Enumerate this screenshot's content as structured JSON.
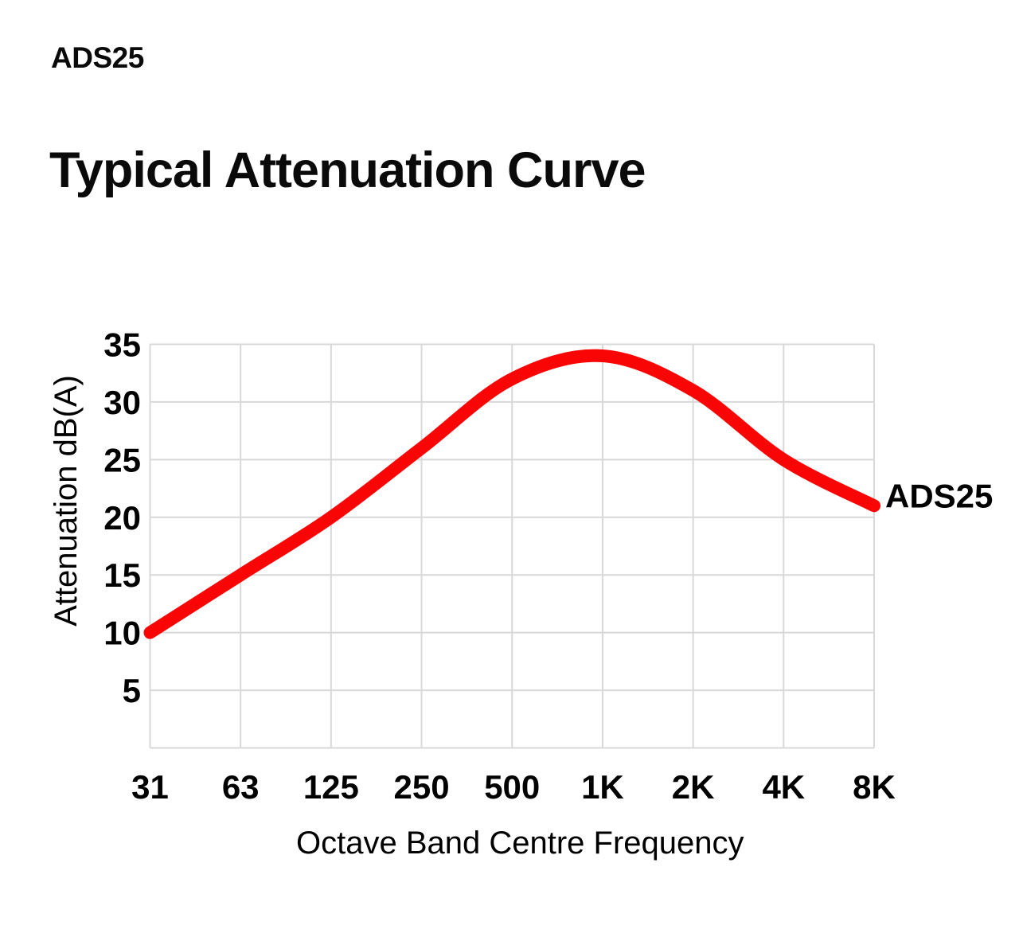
{
  "page": {
    "product_code": "ADS25",
    "title": "Typical Attenuation Curve"
  },
  "chart_data": {
    "type": "line",
    "title": "Typical Attenuation Curve",
    "categories": [
      "31",
      "63",
      "125",
      "250",
      "500",
      "1K",
      "2K",
      "4K",
      "8K"
    ],
    "series": [
      {
        "name": "ADS25",
        "label": "ADS25",
        "values": [
          10,
          15,
          20,
          26,
          32,
          34,
          31,
          25,
          21
        ],
        "color": "#f90505",
        "line_width": 16,
        "smooth": true
      }
    ],
    "xlabel": "Octave Band Centre Frequency",
    "ylabel": "Attenuation dB(A)",
    "ylim": [
      0,
      35
    ],
    "ytick_step": 5,
    "yticks_labeled": [
      5,
      10,
      15,
      20,
      25,
      30,
      35
    ],
    "grid": true,
    "gridline_color": "#d8d8d8",
    "text_color": "#000000",
    "legend_position": "right-of-line-end"
  }
}
